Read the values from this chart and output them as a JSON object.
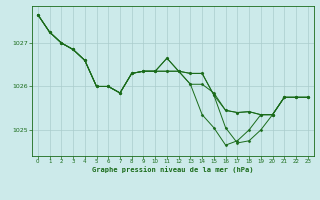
{
  "title": "Graphe pression niveau de la mer (hPa)",
  "bg_color": "#cceaea",
  "grid_color": "#aacccc",
  "line_color": "#1a6b1a",
  "marker_color": "#1a6b1a",
  "xlim": [
    -0.5,
    23.5
  ],
  "ylim": [
    1024.4,
    1027.85
  ],
  "yticks": [
    1025,
    1026,
    1027
  ],
  "xticks": [
    0,
    1,
    2,
    3,
    4,
    5,
    6,
    7,
    8,
    9,
    10,
    11,
    12,
    13,
    14,
    15,
    16,
    17,
    18,
    19,
    20,
    21,
    22,
    23
  ],
  "lines": [
    [
      1027.65,
      1027.25,
      1027.0,
      1026.85,
      1026.6,
      1026.0,
      1026.0,
      1025.85,
      1026.3,
      1026.35,
      1026.35,
      1026.35,
      1026.35,
      1026.3,
      1026.3,
      1025.8,
      1025.05,
      1024.7,
      1024.75,
      1025.0,
      1025.35,
      1025.75,
      1025.75,
      1025.75
    ],
    [
      1027.65,
      1027.25,
      1027.0,
      1026.85,
      1026.6,
      1026.0,
      1026.0,
      1025.85,
      1026.3,
      1026.35,
      1026.35,
      1026.35,
      1026.35,
      1026.3,
      1026.3,
      1025.8,
      1025.45,
      1025.4,
      1025.42,
      1025.35,
      1025.35,
      1025.75,
      1025.75,
      1025.75
    ],
    [
      1027.65,
      1027.25,
      1027.0,
      1026.85,
      1026.6,
      1026.0,
      1026.0,
      1025.85,
      1026.3,
      1026.35,
      1026.35,
      1026.65,
      1026.35,
      1026.05,
      1026.05,
      1025.85,
      1025.45,
      1025.4,
      1025.42,
      1025.35,
      1025.35,
      1025.75,
      1025.75,
      1025.75
    ],
    [
      1027.65,
      1027.25,
      1027.0,
      1026.85,
      1026.6,
      1026.0,
      1026.0,
      1025.85,
      1026.3,
      1026.35,
      1026.35,
      1026.65,
      1026.35,
      1026.05,
      1025.35,
      1025.05,
      1024.65,
      1024.75,
      1025.0,
      1025.35,
      1025.35,
      1025.75,
      1025.75,
      1025.75
    ]
  ]
}
